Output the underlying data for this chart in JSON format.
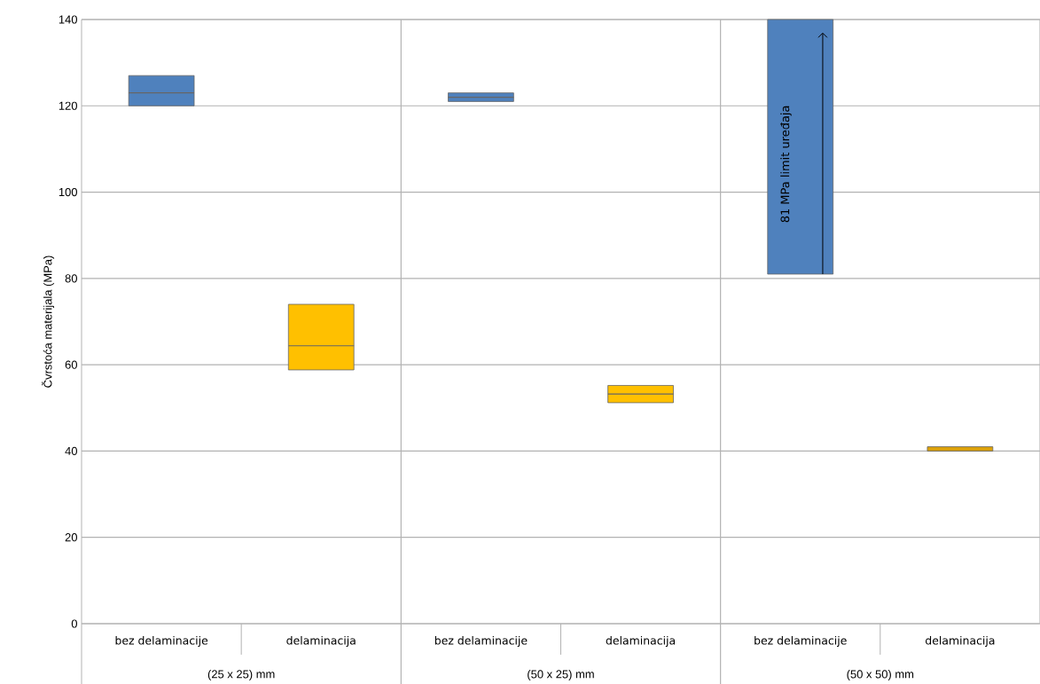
{
  "chart_data": {
    "type": "box",
    "ylabel": "Čvrstoća materijala (MPa)",
    "categories": [
      "bez delaminacije",
      "delaminacija",
      "bez delaminacije",
      "delaminacija",
      "bez delaminacije",
      "delaminacija"
    ],
    "boxes": [
      {
        "low": 120,
        "q1": 120,
        "median": 123,
        "q3": 127,
        "high": 127
      },
      {
        "low": 58.8,
        "q1": 58.8,
        "median": 64.4,
        "q3": 74,
        "high": 74
      },
      {
        "low": 121,
        "q1": 121,
        "median": 122,
        "q3": 123,
        "high": 123
      },
      {
        "low": 51.2,
        "q1": 51.2,
        "median": 53.2,
        "q3": 55.2,
        "high": 55.2
      },
      {
        "low": 81,
        "q1": 81,
        "q3": 140,
        "high": 140
      },
      {
        "low": 40,
        "q1": 40,
        "q3": 41,
        "high": 41
      }
    ],
    "colors": [
      "#4f81bd",
      "#ffc000",
      "#4f81bd",
      "#ffc000",
      "#4f81bd",
      "#dca10a"
    ],
    "ylim": [
      0,
      140
    ],
    "yticks": [
      0,
      20,
      40,
      60,
      80,
      100,
      120,
      140
    ],
    "grid": "y",
    "annotations": [
      "(25 x 25) mm",
      "(50 x 25) mm",
      "(50 x 50) mm",
      "81 MPa limit uređaja"
    ]
  }
}
